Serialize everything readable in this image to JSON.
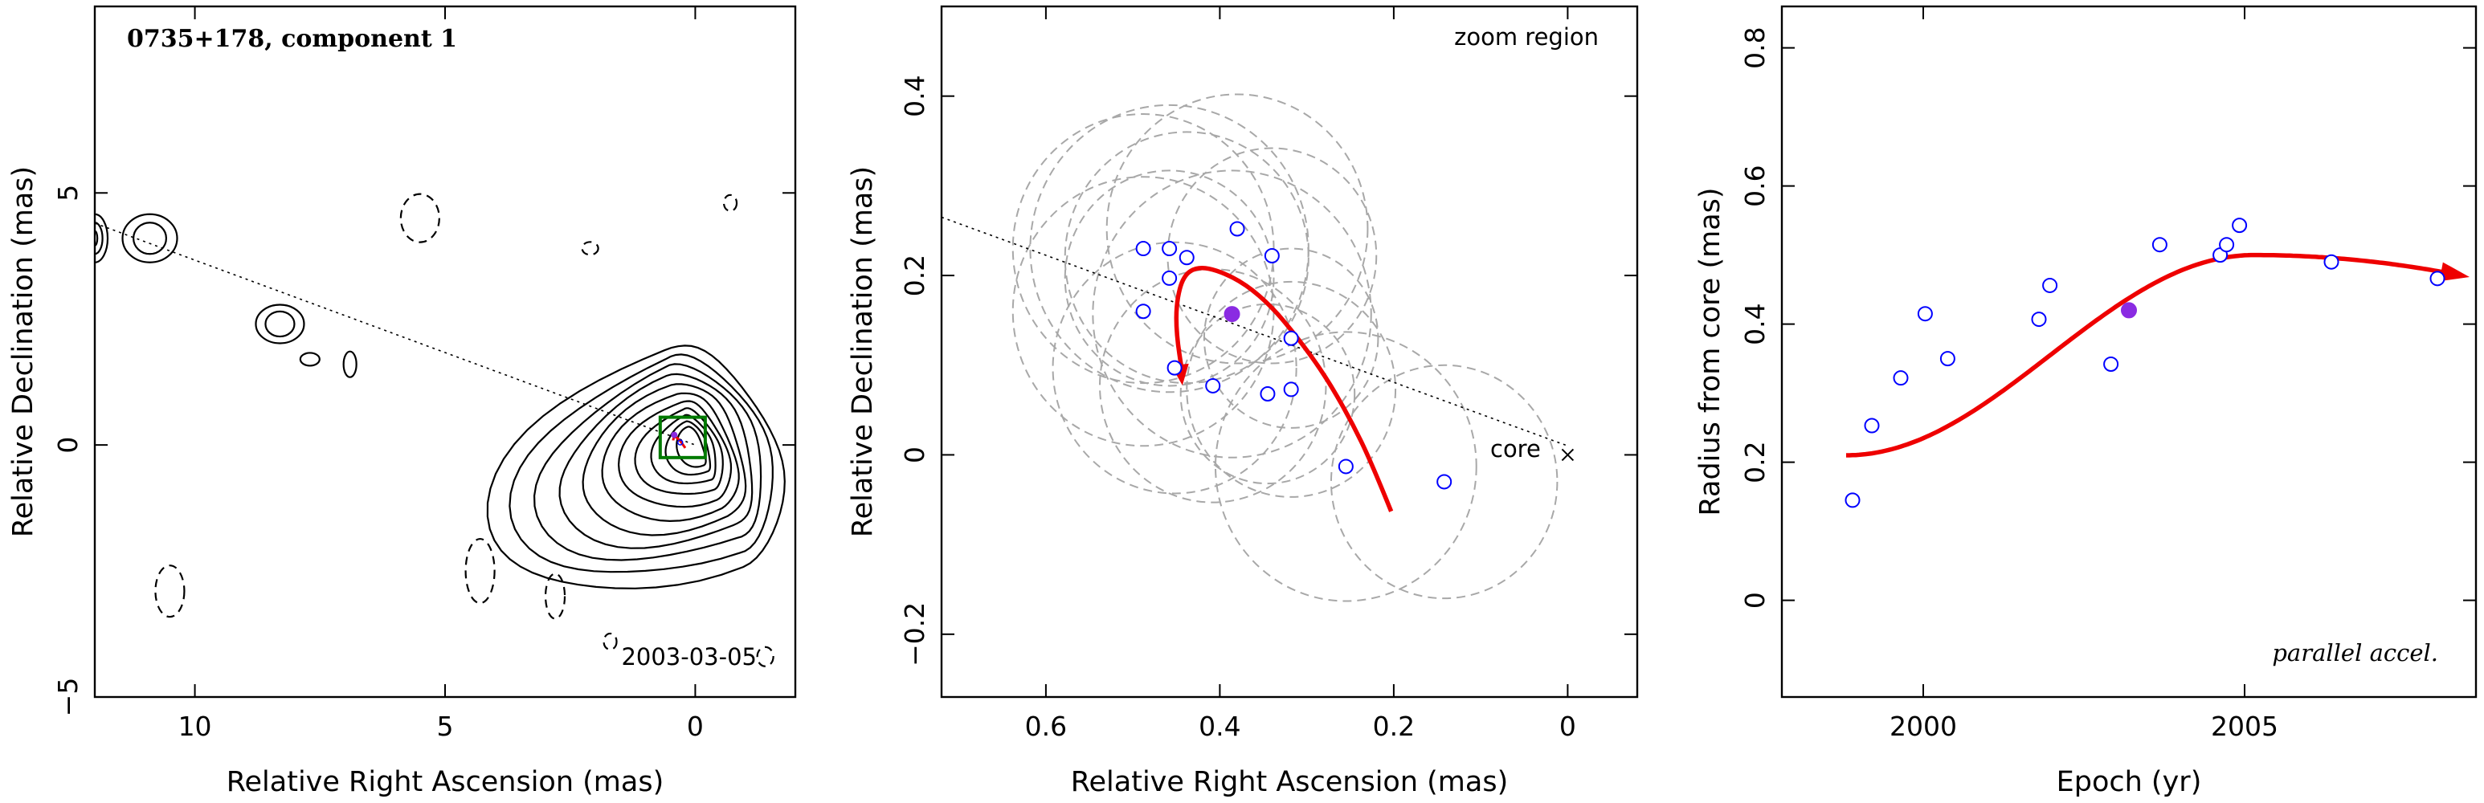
{
  "colors": {
    "open_point": "#0000ff",
    "filled_point": "#8a2be2",
    "fit_curve": "#ee0000",
    "zoom_box": "#007a00",
    "ellipse": "#a8a8a8"
  },
  "chart_data": [
    {
      "type": "contour",
      "title": "0735+178, component 1",
      "date_label": "2003-03-05",
      "xlabel": "Relative Right Ascension (mas)",
      "ylabel": "Relative Declination (mas)",
      "xlim": [
        12,
        -2
      ],
      "ylim": [
        -5,
        8.7
      ],
      "xticks": [
        10,
        5,
        0
      ],
      "yticks": [
        -5,
        0,
        5
      ],
      "xticklabels": [
        "10",
        "5",
        "0"
      ],
      "yticklabels": [
        "−5",
        "0",
        "5"
      ],
      "core_contour_levels": 11,
      "zoom_box": {
        "x_range": [
          -0.2,
          0.7
        ],
        "y_range": [
          -0.25,
          0.55
        ]
      },
      "position_angle_line": {
        "from": [
          12,
          4.4
        ],
        "to": [
          0,
          0
        ]
      }
    },
    {
      "type": "scatter",
      "zoom_label": "zoom region",
      "core_label": "core",
      "xlabel": "Relative Right Ascension (mas)",
      "ylabel": "Relative Declination (mas)",
      "xlim": [
        0.72,
        -0.08
      ],
      "ylim": [
        -0.27,
        0.5
      ],
      "xticks": [
        0.6,
        0.4,
        0.2,
        0
      ],
      "yticks": [
        -0.2,
        0,
        0.2,
        0.4
      ],
      "xticklabels": [
        "0.6",
        "0.4",
        "0.2",
        "0"
      ],
      "yticklabels": [
        "−0.2",
        "0",
        "0.2",
        "0.4"
      ],
      "points": [
        {
          "x": 0.488,
          "y": 0.23
        },
        {
          "x": 0.458,
          "y": 0.23
        },
        {
          "x": 0.438,
          "y": 0.22
        },
        {
          "x": 0.38,
          "y": 0.252
        },
        {
          "x": 0.34,
          "y": 0.222
        },
        {
          "x": 0.488,
          "y": 0.16
        },
        {
          "x": 0.458,
          "y": 0.197
        },
        {
          "x": 0.318,
          "y": 0.13
        },
        {
          "x": 0.452,
          "y": 0.097
        },
        {
          "x": 0.408,
          "y": 0.077
        },
        {
          "x": 0.345,
          "y": 0.068
        },
        {
          "x": 0.318,
          "y": 0.073
        },
        {
          "x": 0.255,
          "y": -0.013
        },
        {
          "x": 0.142,
          "y": -0.03
        }
      ],
      "filled_point": {
        "x": 0.386,
        "y": 0.157
      },
      "error_circles": [
        {
          "x": 0.488,
          "y": 0.23,
          "r": 0.15
        },
        {
          "x": 0.458,
          "y": 0.23,
          "r": 0.16
        },
        {
          "x": 0.438,
          "y": 0.22,
          "r": 0.14
        },
        {
          "x": 0.38,
          "y": 0.252,
          "r": 0.15
        },
        {
          "x": 0.34,
          "y": 0.222,
          "r": 0.12
        },
        {
          "x": 0.488,
          "y": 0.16,
          "r": 0.15
        },
        {
          "x": 0.458,
          "y": 0.197,
          "r": 0.12
        },
        {
          "x": 0.318,
          "y": 0.13,
          "r": 0.1
        },
        {
          "x": 0.452,
          "y": 0.097,
          "r": 0.14
        },
        {
          "x": 0.408,
          "y": 0.077,
          "r": 0.13
        },
        {
          "x": 0.345,
          "y": 0.068,
          "r": 0.1
        },
        {
          "x": 0.318,
          "y": 0.073,
          "r": 0.12
        },
        {
          "x": 0.255,
          "y": -0.013,
          "r": 0.15
        },
        {
          "x": 0.142,
          "y": -0.03,
          "r": 0.13
        },
        {
          "x": 0.386,
          "y": 0.157,
          "r": 0.16
        }
      ],
      "fit_path": [
        {
          "x": 0.203,
          "y": -0.063
        },
        {
          "x": 0.225,
          "y": -0.01
        },
        {
          "x": 0.25,
          "y": 0.04
        },
        {
          "x": 0.28,
          "y": 0.09
        },
        {
          "x": 0.31,
          "y": 0.13
        },
        {
          "x": 0.34,
          "y": 0.165
        },
        {
          "x": 0.37,
          "y": 0.19
        },
        {
          "x": 0.4,
          "y": 0.205
        },
        {
          "x": 0.425,
          "y": 0.21
        },
        {
          "x": 0.442,
          "y": 0.2
        },
        {
          "x": 0.45,
          "y": 0.17
        },
        {
          "x": 0.45,
          "y": 0.135
        },
        {
          "x": 0.443,
          "y": 0.09
        }
      ],
      "position_angle_line": {
        "from": [
          0.72,
          0.265
        ],
        "to": [
          0.0,
          0.01
        ]
      }
    },
    {
      "type": "scatter",
      "annotation": "parallel accel.",
      "xlabel": "Epoch (yr)",
      "ylabel": "Radius from core (mas)",
      "xlim": [
        1997.8,
        2008.6
      ],
      "ylim": [
        -0.14,
        0.86
      ],
      "xticks": [
        2000,
        2005
      ],
      "yticks": [
        0,
        0.2,
        0.4,
        0.6,
        0.8
      ],
      "xticklabels": [
        "2000",
        "2005"
      ],
      "yticklabels": [
        "0",
        "0.2",
        "0.4",
        "0.6",
        "0.8"
      ],
      "points": [
        {
          "x": 1998.9,
          "y": 0.145
        },
        {
          "x": 1999.2,
          "y": 0.253
        },
        {
          "x": 1999.65,
          "y": 0.322
        },
        {
          "x": 2000.03,
          "y": 0.415
        },
        {
          "x": 2000.38,
          "y": 0.35
        },
        {
          "x": 2001.8,
          "y": 0.407
        },
        {
          "x": 2001.97,
          "y": 0.456
        },
        {
          "x": 2002.92,
          "y": 0.342
        },
        {
          "x": 2003.68,
          "y": 0.515
        },
        {
          "x": 2004.62,
          "y": 0.5
        },
        {
          "x": 2004.72,
          "y": 0.515
        },
        {
          "x": 2004.92,
          "y": 0.543
        },
        {
          "x": 2006.35,
          "y": 0.49
        },
        {
          "x": 2008.0,
          "y": 0.466
        }
      ],
      "filled_point": {
        "x": 2003.2,
        "y": 0.42
      },
      "fit_curve": {
        "x0": 1998.8,
        "y0": 0.21,
        "x1": 2005.15,
        "y1": 0.5,
        "x_end": 2008.5
      }
    }
  ]
}
